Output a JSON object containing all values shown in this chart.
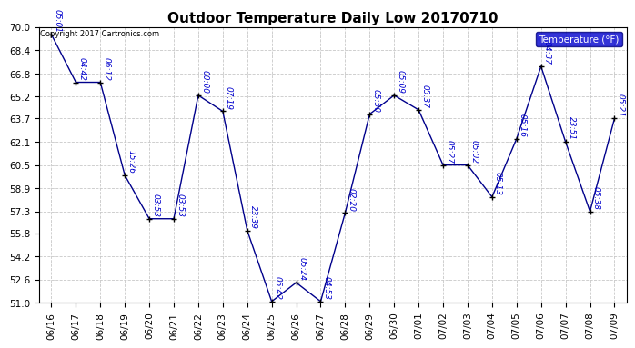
{
  "title": "Outdoor Temperature Daily Low 20170710",
  "copyright_text": "Copyright 2017 Cartronics.com",
  "legend_label": "Temperature (°F)",
  "dates": [
    "06/16",
    "06/17",
    "06/18",
    "06/19",
    "06/20",
    "06/21",
    "06/22",
    "06/23",
    "06/24",
    "06/25",
    "06/26",
    "06/27",
    "06/28",
    "06/29",
    "06/30",
    "07/01",
    "07/02",
    "07/03",
    "07/04",
    "07/05",
    "07/06",
    "07/07",
    "07/08",
    "07/09"
  ],
  "temperatures": [
    69.5,
    66.2,
    66.2,
    59.8,
    56.8,
    56.8,
    65.3,
    64.2,
    56.0,
    51.1,
    52.4,
    51.1,
    57.2,
    64.0,
    65.3,
    64.3,
    60.5,
    60.5,
    58.3,
    62.3,
    67.3,
    62.1,
    57.3,
    63.7
  ],
  "time_labels": [
    "05:01",
    "04:42",
    "06:12",
    "15:26",
    "03:53",
    "03:53",
    "00:00",
    "07:19",
    "23:39",
    "05:42",
    "05:24",
    "04:53",
    "02:20",
    "05:50",
    "05:09",
    "05:37",
    "05:27",
    "05:02",
    "05:13",
    "05:16",
    "04:37",
    "23:51",
    "05:38",
    "05:21"
  ],
  "ylim": [
    51.0,
    70.0
  ],
  "yticks": [
    51.0,
    52.6,
    54.2,
    55.8,
    57.3,
    58.9,
    60.5,
    62.1,
    63.7,
    65.2,
    66.8,
    68.4,
    70.0
  ],
  "line_color": "#00008B",
  "marker_color": "#000000",
  "label_color": "#0000CD",
  "grid_color": "#C8C8C8",
  "bg_color": "#FFFFFF",
  "plot_bg_color": "#FFFFFF",
  "title_fontsize": 11,
  "label_fontsize": 6.5,
  "tick_fontsize": 7.5,
  "legend_bg": "#0000CD",
  "legend_text_color": "#FFFFFF"
}
